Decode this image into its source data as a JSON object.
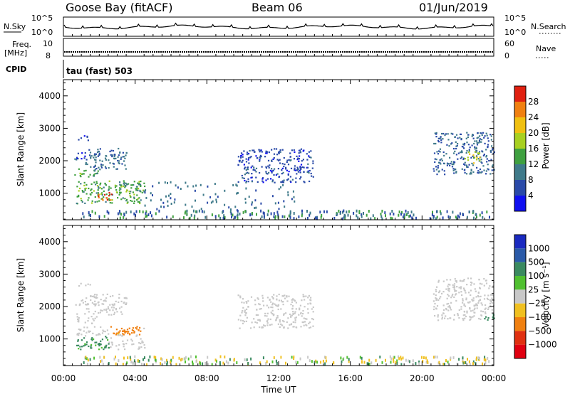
{
  "header": {
    "station": "Goose Bay (fitACF)",
    "beam": "Beam 06",
    "date": "01/Jun/2019"
  },
  "noise_panel": {
    "left_label": "N.Sky",
    "right_label": "N.Search",
    "left_ticks": [
      "10^5",
      "10^0"
    ],
    "right_ticks": [
      "10^5",
      "10^0"
    ]
  },
  "freq_panel": {
    "left_label_line1": "Freq.",
    "left_label_line2": "[MHz]",
    "left_ticks": [
      "10",
      "8"
    ],
    "right_label": "Nave",
    "right_ticks": [
      "60",
      "0"
    ]
  },
  "cpid_panel": {
    "label": "CPID",
    "text": "tau (fast) 503"
  },
  "power_panel": {
    "ylabel": "Slant Range [km]",
    "yticks": [
      "4000",
      "3000",
      "2000",
      "1000"
    ],
    "colorbar_label": "Power [dB]",
    "colorbar_ticks": [
      "28",
      "24",
      "20",
      "16",
      "12",
      "8",
      "4"
    ]
  },
  "velocity_panel": {
    "ylabel": "Slant Range [km]",
    "yticks": [
      "4000",
      "3000",
      "2000",
      "1000"
    ],
    "colorbar_label": "Velocity [m s⁻¹]",
    "colorbar_ticks": [
      "1000",
      "500",
      "100",
      "25",
      "−25",
      "−100",
      "−500",
      "−1000"
    ]
  },
  "xaxis": {
    "label": "Time UT",
    "ticks": [
      "00:00",
      "04:00",
      "08:00",
      "12:00",
      "16:00",
      "20:00",
      "00:00"
    ]
  },
  "colors": {
    "power_scale": [
      "#1010f0",
      "#2a4aa8",
      "#3f7a8a",
      "#3fa040",
      "#a8d020",
      "#f0c010",
      "#f08010",
      "#e02010"
    ],
    "velocity_scale": [
      "#1a2ac0",
      "#2a5aa8",
      "#3a8a60",
      "#50c030",
      "#c8c8c8",
      "#f0c020",
      "#f08010",
      "#e03010",
      "#e00010"
    ]
  },
  "chart_data": [
    {
      "type": "line",
      "title": "N.Sky / N.Search",
      "x_range_hours": [
        0,
        24
      ],
      "y_scale": "log",
      "ylim": [
        1,
        100000
      ],
      "series": []
    },
    {
      "type": "line",
      "title": "Freq / Nave",
      "x_range_hours": [
        0,
        24
      ],
      "series": []
    },
    {
      "type": "heatmap",
      "quantity": "Power [dB]",
      "x": "Time UT",
      "y": "Slant Range [km]",
      "xlim": [
        "00:00",
        "24:00"
      ],
      "ylim": [
        180,
        4500
      ],
      "zlim": [
        0,
        32
      ],
      "regions": [
        {
          "t": [
            0.6,
            1.9
          ],
          "r": [
            1500,
            1800
          ],
          "power": 14
        },
        {
          "t": [
            1.2,
            3.5
          ],
          "r": [
            1750,
            2400
          ],
          "power": 9
        },
        {
          "t": [
            0.6,
            2.0
          ],
          "r": [
            2050,
            2300
          ],
          "power": 6
        },
        {
          "t": [
            0.8,
            1.5
          ],
          "r": [
            2650,
            2800
          ],
          "power": 6
        },
        {
          "t": [
            0.7,
            4.5
          ],
          "r": [
            700,
            1400
          ],
          "power": 14
        },
        {
          "t": [
            1.9,
            2.7
          ],
          "r": [
            750,
            1050
          ],
          "power": 28
        },
        {
          "t": [
            3.0,
            4.3
          ],
          "r": [
            1100,
            1400
          ],
          "power": 12
        },
        {
          "t": [
            9.7,
            13.9
          ],
          "r": [
            1350,
            2400
          ],
          "power": 6
        },
        {
          "t": [
            20.6,
            24.0
          ],
          "r": [
            1600,
            2900
          ],
          "power": 8
        },
        {
          "t": [
            22.3,
            23.2
          ],
          "r": [
            1950,
            2300
          ],
          "power": 18
        }
      ]
    },
    {
      "type": "heatmap",
      "quantity": "Velocity [m s⁻¹]",
      "x": "Time UT",
      "y": "Slant Range [km]",
      "xlim": [
        "00:00",
        "24:00"
      ],
      "ylim": [
        180,
        4500
      ],
      "regions": [
        {
          "t": [
            0.6,
            3.5
          ],
          "r": [
            1500,
            2400
          ],
          "velocity": 0
        },
        {
          "t": [
            0.7,
            2.5
          ],
          "r": [
            700,
            1100
          ],
          "velocity": 80
        },
        {
          "t": [
            2.5,
            4.3
          ],
          "r": [
            1150,
            1400
          ],
          "velocity": -150
        },
        {
          "t": [
            9.7,
            13.9
          ],
          "r": [
            1350,
            2400
          ],
          "velocity": 0
        },
        {
          "t": [
            20.6,
            24.0
          ],
          "r": [
            1600,
            2900
          ],
          "velocity": 0
        },
        {
          "t": [
            23.4,
            24.0
          ],
          "r": [
            900,
            1800
          ],
          "velocity": 100
        }
      ]
    }
  ]
}
